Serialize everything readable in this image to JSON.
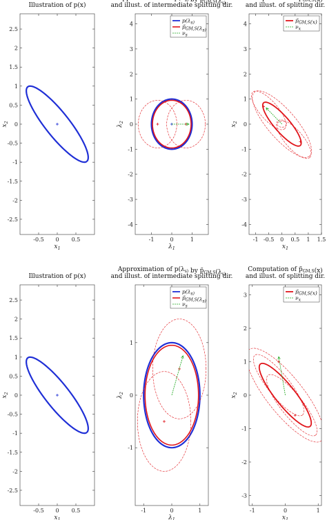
{
  "colors": {
    "blue": "#1f2fd6",
    "red": "#e0141a",
    "green": "#1fa81f",
    "axis": "#333333"
  },
  "chart_data": [
    {
      "type": "line",
      "title": [
        "Illustration of p(x)"
      ],
      "xlabel": "x1",
      "ylabel": "x2",
      "xlim": [
        -1,
        1
      ],
      "ylim": [
        -2.9,
        2.9
      ],
      "xticks": [
        -0.5,
        0,
        0.5
      ],
      "yticks": [
        2.5,
        2,
        1.5,
        1,
        0.5,
        0,
        -0.5,
        -1,
        -1.5,
        -2,
        -2.5
      ],
      "legend": [],
      "ellipses": [
        {
          "series": "p(x)",
          "color": "blue",
          "cx": 0,
          "cy": 0,
          "a": 1.26,
          "b": 0.32,
          "angle_deg": -51,
          "width": 2.2,
          "dash": false
        }
      ],
      "arrows": [],
      "markers": [
        {
          "x": 0,
          "y": 0,
          "color": "blue"
        }
      ]
    },
    {
      "type": "line",
      "title": [
        "Approximation of p(λ_s) by p̃_GM,S(λ_s)",
        "and illust. of intermediate splitting dir."
      ],
      "xlabel": "λ1",
      "ylabel": "λ2",
      "xlim": [
        -1.8,
        1.8
      ],
      "ylim": [
        -4.4,
        4.4
      ],
      "xticks": [
        -1,
        0,
        1
      ],
      "yticks": [
        4,
        3,
        2,
        1,
        0,
        -1,
        -2,
        -3,
        -4
      ],
      "legend": [
        "p(λ_s)",
        "p̃_GM,S(λ_s)",
        "ν_s"
      ],
      "ellipses": [
        {
          "series": "p(λ_s)",
          "color": "blue",
          "cx": 0,
          "cy": 0,
          "a": 1,
          "b": 1,
          "angle_deg": 0,
          "width": 2.2,
          "dash": false
        },
        {
          "series": "p̃_GM,S(λ_s)",
          "color": "red",
          "cx": 0,
          "cy": 0,
          "a": 0.95,
          "b": 0.95,
          "angle_deg": 0,
          "width": 1.6,
          "dash": false
        },
        {
          "series": "",
          "color": "red",
          "cx": -0.7,
          "cy": 0,
          "a": 0.95,
          "b": 0.95,
          "angle_deg": 0,
          "width": 0.6,
          "dash": true
        },
        {
          "series": "",
          "color": "red",
          "cx": 0.7,
          "cy": 0,
          "a": 0.95,
          "b": 0.95,
          "angle_deg": 0,
          "width": 0.6,
          "dash": true
        }
      ],
      "arrows": [
        {
          "x1": 0,
          "y1": 0,
          "x2": 0.85,
          "y2": 0,
          "color": "green"
        }
      ],
      "markers": [
        {
          "x": -0.7,
          "y": 0,
          "color": "red"
        },
        {
          "x": 0.7,
          "y": 0,
          "color": "red"
        },
        {
          "x": 0,
          "y": 0,
          "color": "blue"
        }
      ]
    },
    {
      "type": "line",
      "title": [
        "Computation of p̃_GM,S(x)",
        "and illust. of splitting dir."
      ],
      "xlabel": "x1",
      "ylabel": "x2",
      "xlim": [
        -1.25,
        1.5
      ],
      "ylim": [
        -4.4,
        4.4
      ],
      "xticks": [
        -1,
        -0.5,
        0,
        0.5,
        1,
        1.5
      ],
      "yticks": [
        4,
        3,
        2,
        1,
        0,
        -1,
        -2,
        -3,
        -4
      ],
      "legend": [
        "p̃_GM,S(x)",
        "ν_x"
      ],
      "ellipses": [
        {
          "series": "p̃_GM,S(x)",
          "color": "red",
          "cx": 0,
          "cy": 0,
          "a": 1.1,
          "b": 0.3,
          "angle_deg": -51,
          "width": 1.8,
          "dash": false
        },
        {
          "series": "",
          "color": "red",
          "cx": 0,
          "cy": 0,
          "a": 1.65,
          "b": 0.55,
          "angle_deg": -51,
          "width": 0.6,
          "dash": true
        },
        {
          "series": "",
          "color": "red",
          "cx": -0.5,
          "cy": 0.55,
          "a": 0.95,
          "b": 0.35,
          "angle_deg": -51,
          "width": 0.6,
          "dash": true
        },
        {
          "series": "",
          "color": "red",
          "cx": 0.45,
          "cy": -0.6,
          "a": 0.95,
          "b": 0.35,
          "angle_deg": -51,
          "width": 0.6,
          "dash": true
        },
        {
          "series": "",
          "color": "red",
          "cx": 0,
          "cy": 0,
          "a": 0.18,
          "b": 0.12,
          "angle_deg": 0,
          "width": 0.6,
          "dash": true
        }
      ],
      "arrows": [
        {
          "x1": 0,
          "y1": 0,
          "x2": -0.6,
          "y2": 0.65,
          "color": "green"
        }
      ],
      "markers": [
        {
          "x": -0.7,
          "y": 0.7,
          "color": "red"
        },
        {
          "x": 0.7,
          "y": -0.7,
          "color": "red"
        }
      ]
    },
    {
      "type": "line",
      "title": [
        "Illustration of p(x)"
      ],
      "xlabel": "x1",
      "ylabel": "x2",
      "xlim": [
        -1,
        1
      ],
      "ylim": [
        -2.9,
        2.9
      ],
      "xticks": [
        -0.5,
        0,
        0.5
      ],
      "yticks": [
        2.5,
        2,
        1.5,
        1,
        0.5,
        0,
        -0.5,
        -1,
        -1.5,
        -2,
        -2.5
      ],
      "legend": [],
      "ellipses": [
        {
          "series": "p(x)",
          "color": "blue",
          "cx": 0,
          "cy": 0,
          "a": 1.26,
          "b": 0.32,
          "angle_deg": -51,
          "width": 2.2,
          "dash": false
        }
      ],
      "arrows": [],
      "markers": [
        {
          "x": 0,
          "y": 0,
          "color": "blue"
        }
      ]
    },
    {
      "type": "line",
      "title": [
        "Approximation of p(λ_s) by p̃_GM,S(λ_s)",
        "and illust. of intermediate splitting dir."
      ],
      "xlabel": "λ1",
      "ylabel": "λ2",
      "xlim": [
        -1.3,
        1.3
      ],
      "ylim": [
        -2.1,
        2.1
      ],
      "xticks": [
        -1,
        0,
        1
      ],
      "yticks": [
        1,
        0,
        -1
      ],
      "legend": [
        "p(λ_s)",
        "p̃_GM,S(λ_s)",
        "ν_s"
      ],
      "ellipses": [
        {
          "series": "p(λ_s)",
          "color": "blue",
          "cx": 0,
          "cy": 0,
          "a": 1,
          "b": 1,
          "angle_deg": 0,
          "width": 2.2,
          "dash": false
        },
        {
          "series": "p̃_GM,S(λ_s)",
          "color": "red",
          "cx": 0,
          "cy": 0,
          "a": 0.95,
          "b": 0.95,
          "angle_deg": 0,
          "width": 1.6,
          "dash": false
        },
        {
          "series": "",
          "color": "red",
          "cx": 0.27,
          "cy": 0.5,
          "a": 0.95,
          "b": 0.95,
          "angle_deg": 0,
          "width": 0.6,
          "dash": true
        },
        {
          "series": "",
          "color": "red",
          "cx": -0.27,
          "cy": -0.5,
          "a": 0.95,
          "b": 0.95,
          "angle_deg": 0,
          "width": 0.6,
          "dash": true
        }
      ],
      "arrows": [
        {
          "x1": 0,
          "y1": 0,
          "x2": 0.4,
          "y2": 0.75,
          "color": "green"
        }
      ],
      "markers": [
        {
          "x": -0.27,
          "y": -0.5,
          "color": "red"
        },
        {
          "x": 0.27,
          "y": 0.5,
          "color": "red"
        }
      ]
    },
    {
      "type": "line",
      "title": [
        "Computation of p̃_GM,S(x)",
        "and illust. of splitting dir."
      ],
      "xlabel": "x1",
      "ylabel": "x2",
      "xlim": [
        -1.1,
        1.1
      ],
      "ylim": [
        -3.3,
        3.3
      ],
      "xticks": [
        -1,
        0,
        1
      ],
      "yticks": [
        3,
        2,
        1,
        0,
        -1,
        -2,
        -3
      ],
      "legend": [
        "p̃_GM,S(x)",
        "ν_x"
      ],
      "ellipses": [
        {
          "series": "p̃_GM,S(x)",
          "color": "red",
          "cx": 0,
          "cy": 0,
          "a": 1.2,
          "b": 0.3,
          "angle_deg": -51,
          "width": 1.8,
          "dash": false
        },
        {
          "series": "",
          "color": "red",
          "cx": 0,
          "cy": 0,
          "a": 1.75,
          "b": 0.55,
          "angle_deg": -51,
          "width": 0.6,
          "dash": true
        },
        {
          "series": "",
          "color": "red",
          "cx": -0.2,
          "cy": 0.3,
          "a": 1.15,
          "b": 0.33,
          "angle_deg": -51,
          "width": 0.6,
          "dash": true
        },
        {
          "series": "",
          "color": "red",
          "cx": 0.2,
          "cy": -0.3,
          "a": 1.15,
          "b": 0.33,
          "angle_deg": -51,
          "width": 0.6,
          "dash": true
        }
      ],
      "arrows": [
        {
          "x1": 0,
          "y1": 0,
          "x2": -0.2,
          "y2": 1.15,
          "color": "green"
        }
      ],
      "markers": [
        {
          "x": -0.2,
          "y": 1.0,
          "color": "red"
        },
        {
          "x": 0.3,
          "y": -0.6,
          "color": "red"
        }
      ]
    }
  ]
}
